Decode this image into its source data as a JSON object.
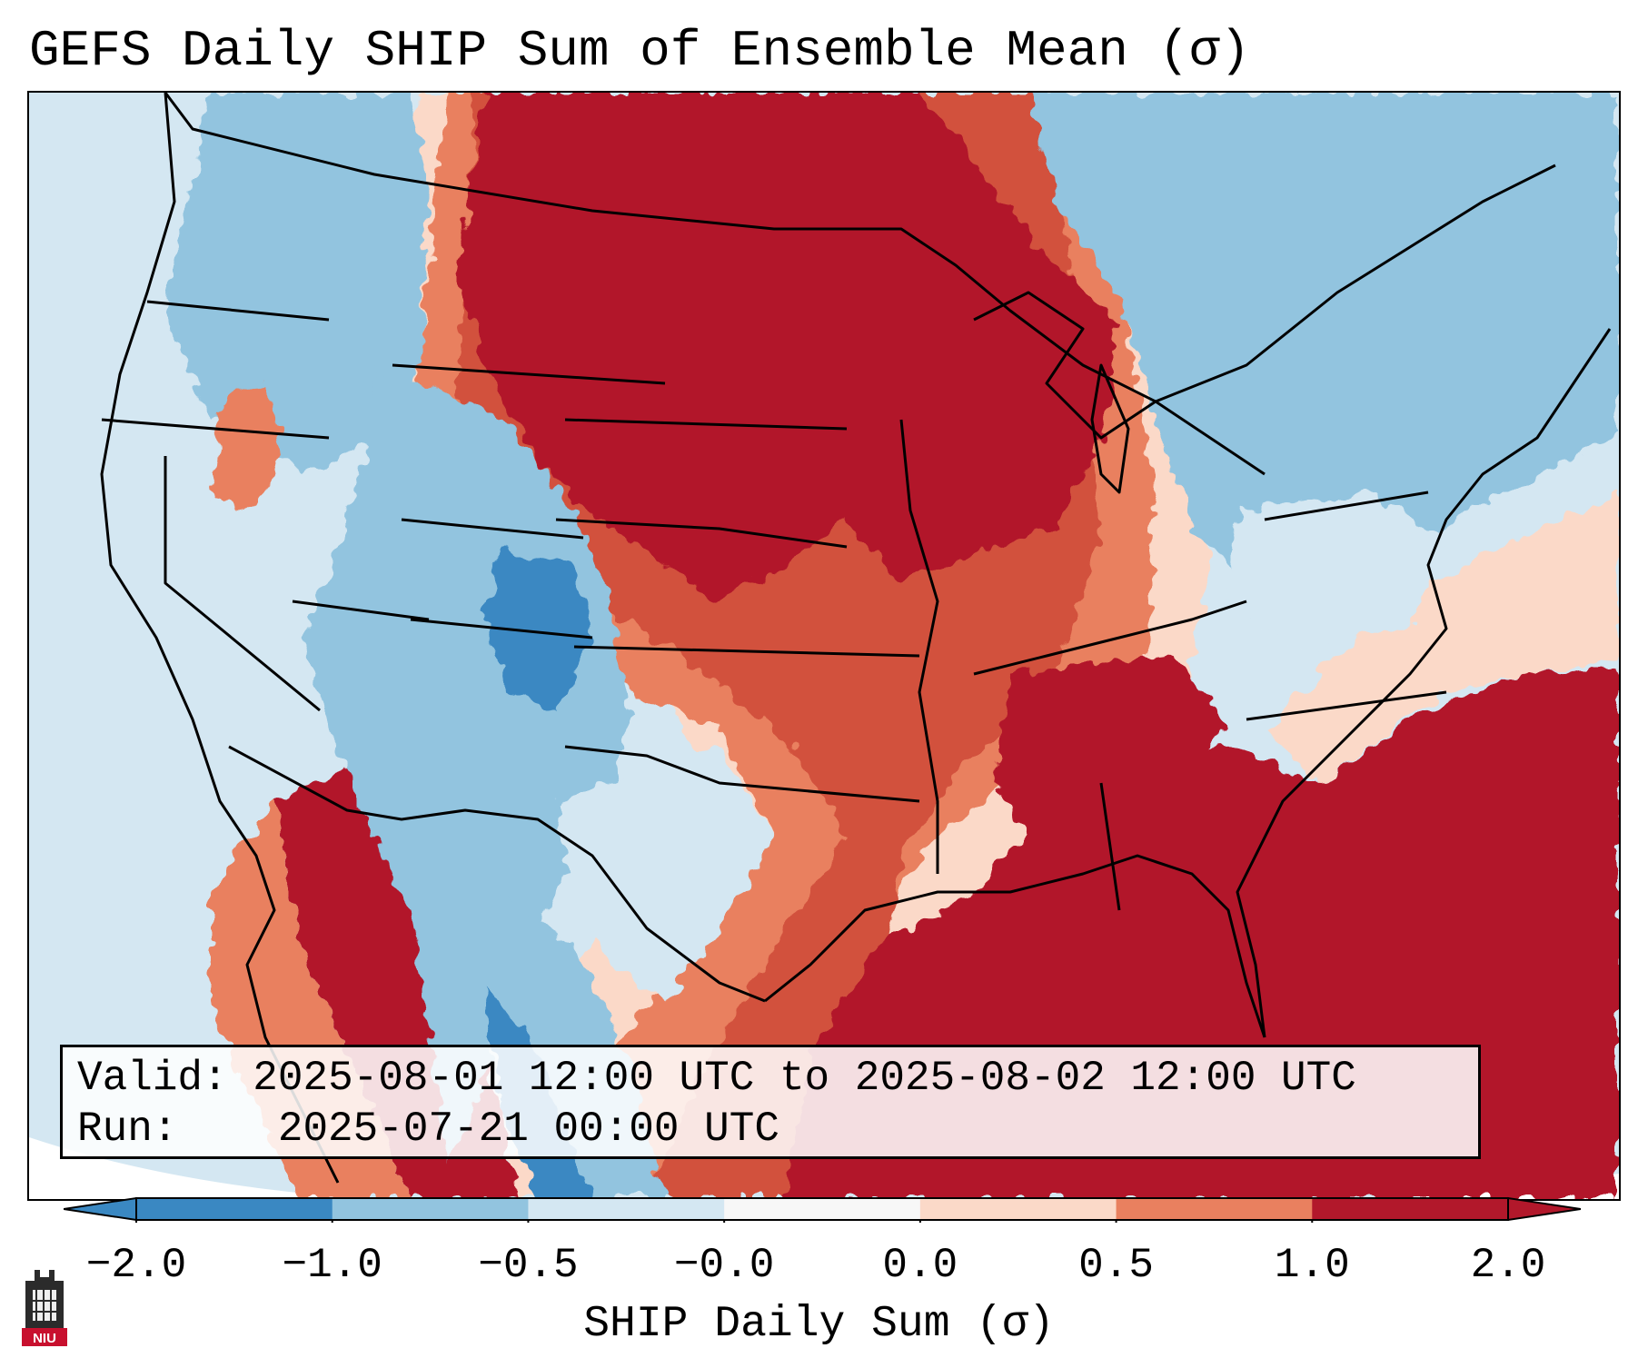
{
  "title": "GEFS Daily SHIP Sum of Ensemble Mean (σ)",
  "info": {
    "valid_label": "Valid:",
    "valid_value": "2025-08-01 12:00 UTC to 2025-08-02 12:00 UTC",
    "run_label": "Run:",
    "run_value": "2025-07-21 00:00 UTC"
  },
  "colorbar": {
    "label": "SHIP Daily Sum (σ)",
    "ticks": [
      "−2.0",
      "−1.0",
      "−0.5",
      "−0.0",
      "0.0",
      "0.5",
      "1.0",
      "2.0"
    ],
    "colors": [
      "#3a88c2",
      "#92c4df",
      "#d4e7f2",
      "#f7f7f7",
      "#fbd9c8",
      "#e9805f",
      "#d2513e",
      "#b2182b"
    ]
  },
  "map": {
    "projection": "Lambert Conformal",
    "region": "Contiguous United States",
    "field_regions": [
      {
        "name": "northern-plains-maximum",
        "category": "2.0"
      },
      {
        "name": "gulf-and-southeast-maximum",
        "category": "2.0"
      },
      {
        "name": "tennessee-valley-maximum",
        "category": "2.0"
      },
      {
        "name": "southwest-minimum",
        "category": "-2.0"
      },
      {
        "name": "northeast-negative",
        "category": "-1.0"
      },
      {
        "name": "western-negative",
        "category": "-0.5"
      }
    ]
  },
  "logo": {
    "text": "NIU"
  }
}
